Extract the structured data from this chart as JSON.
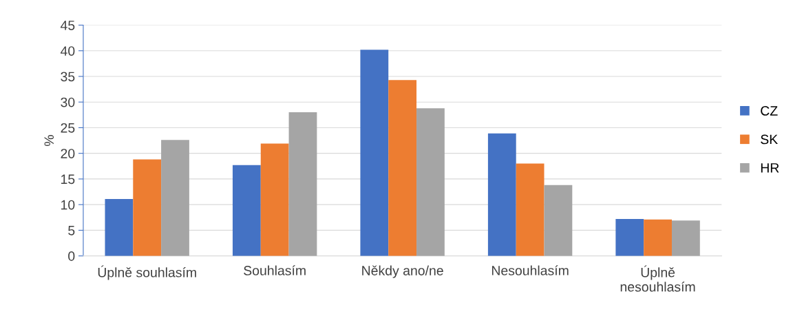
{
  "chart_data": {
    "type": "bar",
    "ylabel": "%",
    "categories": [
      "Úplně souhlasím",
      "Souhlasím",
      "Někdy ano/ne",
      "Nesouhlasím",
      "Úplně\nnesouhlasím"
    ],
    "series": [
      {
        "name": "CZ",
        "color": "#4472c4",
        "values": [
          11.1,
          17.7,
          40.2,
          23.9,
          7.2
        ]
      },
      {
        "name": "SK",
        "color": "#ed7d31",
        "values": [
          18.8,
          21.9,
          34.3,
          18.0,
          7.1
        ]
      },
      {
        "name": "HR",
        "color": "#a5a5a5",
        "values": [
          22.6,
          28.0,
          28.8,
          13.8,
          6.9
        ]
      }
    ],
    "ylim": [
      0,
      45
    ],
    "yticks": [
      0,
      5,
      10,
      15,
      20,
      25,
      30,
      35,
      40,
      45
    ],
    "grid": "y",
    "legend": "right"
  }
}
